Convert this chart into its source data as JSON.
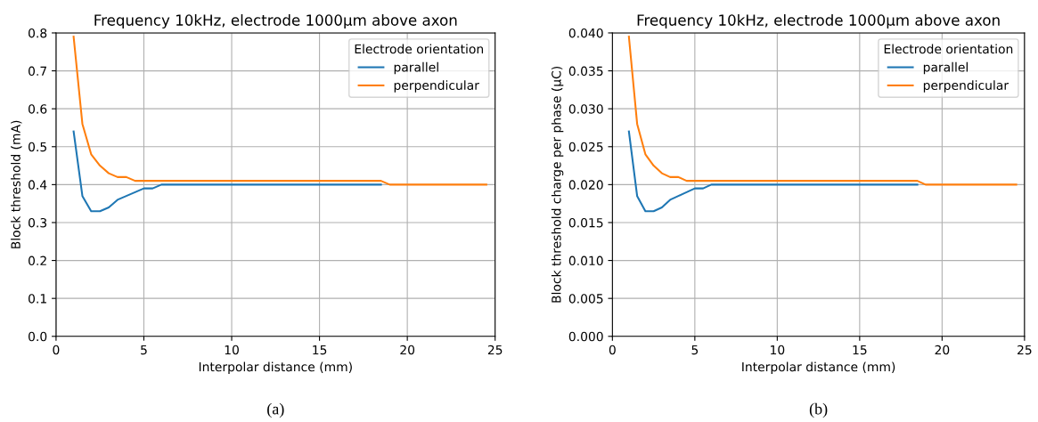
{
  "chart_data": [
    {
      "type": "line",
      "title": "Frequency 10kHz, electrode 1000μm above axon",
      "xlabel": "Interpolar distance (mm)",
      "ylabel": "Block threshold (mA)",
      "legend_title": "Electrode orientation",
      "legend": "top right",
      "grid": true,
      "xlim": [
        0,
        25
      ],
      "xticks": [
        0,
        5,
        10,
        15,
        20,
        25
      ],
      "ylim": [
        0,
        0.8
      ],
      "yticks": [
        {
          "value": 0,
          "label": "0.0"
        },
        0.1,
        0.2,
        0.3,
        0.4,
        0.5,
        0.6,
        0.7,
        0.8
      ],
      "annotations": [
        "(a)"
      ],
      "series": [
        {
          "name": "parallel",
          "color": "#1f77b4",
          "x": [
            1,
            1.5,
            2,
            2.5,
            3,
            3.5,
            4,
            4.5,
            5,
            5.5,
            6,
            18.5
          ],
          "values": [
            0.54,
            0.37,
            0.33,
            0.33,
            0.34,
            0.36,
            0.37,
            0.38,
            0.39,
            0.39,
            0.4,
            0.4
          ]
        },
        {
          "name": "perpendicular",
          "color": "#ff7f0e",
          "x": [
            1,
            1.5,
            2,
            2.5,
            3,
            3.5,
            4,
            4.5,
            18.5,
            19,
            24.5
          ],
          "values": [
            0.79,
            0.56,
            0.48,
            0.45,
            0.43,
            0.42,
            0.42,
            0.41,
            0.41,
            0.4,
            0.4
          ]
        }
      ]
    },
    {
      "type": "line",
      "title": "Frequency 10kHz, electrode 1000μm above axon",
      "xlabel": "Interpolar distance (mm)",
      "ylabel": "Block threshold charge per phase (μC)",
      "legend_title": "Electrode orientation",
      "legend": "top right",
      "grid": true,
      "xlim": [
        0,
        25
      ],
      "xticks": [
        0,
        5,
        10,
        15,
        20,
        25
      ],
      "ylim": [
        0,
        0.04
      ],
      "yticks": [
        {
          "value": 0,
          "label": "0.000"
        },
        {
          "value": 0.005,
          "label": "0.005"
        },
        {
          "value": 0.01,
          "label": "0.010"
        },
        {
          "value": 0.015,
          "label": "0.015"
        },
        {
          "value": 0.02,
          "label": "0.020"
        },
        {
          "value": 0.025,
          "label": "0.025"
        },
        {
          "value": 0.03,
          "label": "0.030"
        },
        {
          "value": 0.035,
          "label": "0.035"
        },
        {
          "value": 0.04,
          "label": "0.040"
        }
      ],
      "annotations": [
        "(b)"
      ],
      "series": [
        {
          "name": "parallel",
          "color": "#1f77b4",
          "x": [
            1,
            1.5,
            2,
            2.5,
            3,
            3.5,
            4,
            4.5,
            5,
            5.5,
            6,
            18.5
          ],
          "values": [
            0.027,
            0.0185,
            0.0165,
            0.0165,
            0.017,
            0.018,
            0.0185,
            0.019,
            0.0195,
            0.0195,
            0.02,
            0.02
          ]
        },
        {
          "name": "perpendicular",
          "color": "#ff7f0e",
          "x": [
            1,
            1.5,
            2,
            2.5,
            3,
            3.5,
            4,
            4.5,
            18.5,
            19,
            24.5
          ],
          "values": [
            0.0395,
            0.028,
            0.024,
            0.0225,
            0.0215,
            0.021,
            0.021,
            0.0205,
            0.0205,
            0.02,
            0.02
          ]
        }
      ]
    }
  ]
}
